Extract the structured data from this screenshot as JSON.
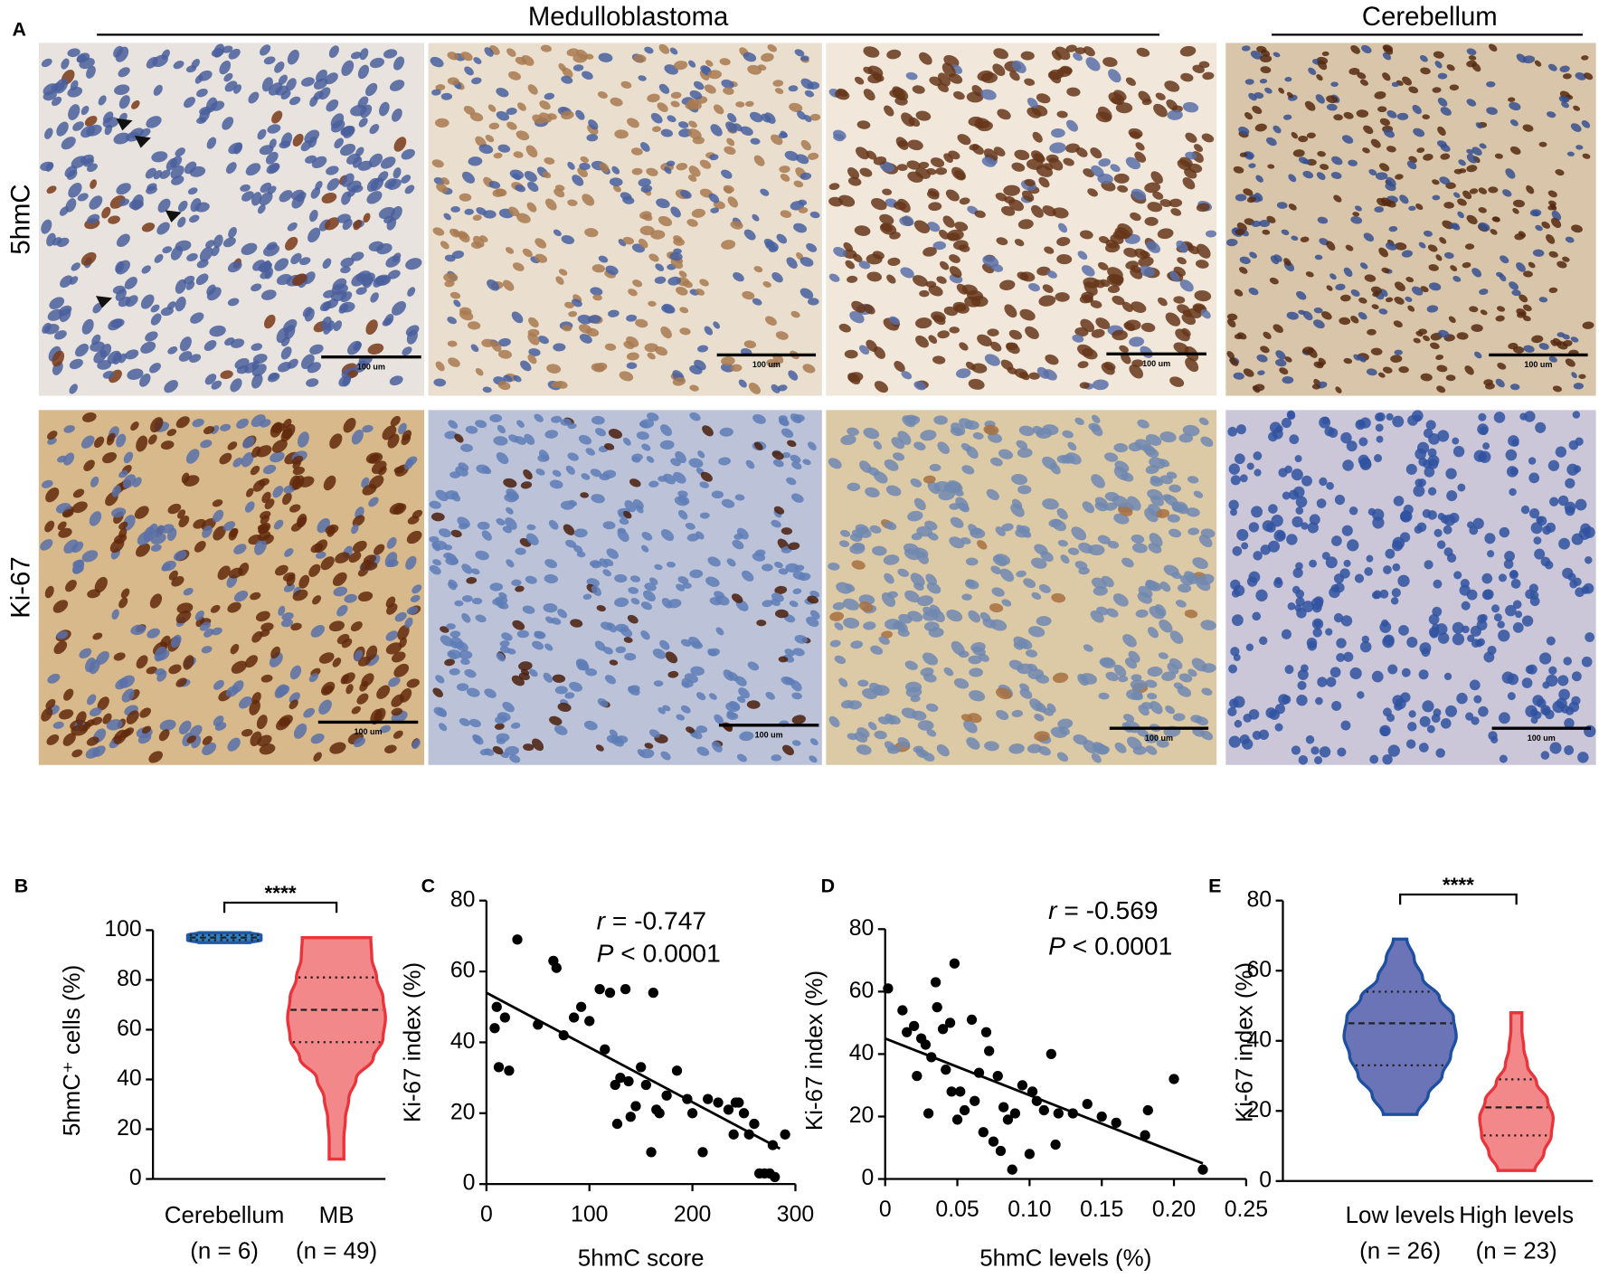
{
  "panel_a": {
    "label": "A",
    "groups": [
      "Medulloblastoma",
      "Cerebellum"
    ],
    "rows": [
      "5hmC",
      "Ki-67"
    ],
    "scale_bar": "100 um"
  },
  "chart_data": [
    {
      "type": "violin",
      "label": "B",
      "ylabel": "5hmC⁺ cells (%)",
      "categories": [
        "Cerebellum",
        "MB"
      ],
      "n_labels": [
        "(n = 6)",
        "(n = 49)"
      ],
      "ylim": [
        0,
        100
      ],
      "yticks": [
        0,
        20,
        40,
        60,
        80,
        100
      ],
      "significance": "****",
      "violins": [
        {
          "fill": "#2f7fc1",
          "stroke": "#1f5aa8",
          "min": 95,
          "max": 99,
          "q1": 96,
          "median": 97,
          "q3": 98,
          "density": [
            0.7,
            1,
            1,
            1,
            0.7
          ]
        },
        {
          "fill": "#f2888a",
          "stroke": "#e8343a",
          "min": 8,
          "max": 97,
          "q1": 55,
          "median": 68,
          "q3": 81,
          "density": [
            0.15,
            0.15,
            0.18,
            0.25,
            0.4,
            0.75,
            0.95,
            1,
            0.95,
            0.82,
            0.72,
            0.7
          ]
        }
      ]
    },
    {
      "type": "scatter",
      "label": "C",
      "xlabel": "5hmC score",
      "ylabel": "Ki-67 index (%)",
      "stat_r": {
        "symbol": "r",
        "text": "= -0.747"
      },
      "stat_p": {
        "symbol": "P",
        "text": "< 0.0001"
      },
      "xlim": [
        0,
        300
      ],
      "xticks": [
        0,
        100,
        200,
        300
      ],
      "ylim": [
        0,
        80
      ],
      "yticks": [
        0,
        20,
        40,
        60,
        80
      ],
      "x": [
        8,
        10,
        12,
        18,
        22,
        30,
        50,
        65,
        68,
        75,
        85,
        92,
        100,
        110,
        115,
        120,
        125,
        127,
        130,
        135,
        138,
        140,
        145,
        150,
        155,
        160,
        162,
        165,
        168,
        175,
        185,
        195,
        200,
        210,
        215,
        225,
        235,
        240,
        242,
        245,
        250,
        255,
        260,
        265,
        270,
        275,
        278,
        280,
        290
      ],
      "values": [
        44,
        50,
        33,
        47,
        32,
        69,
        45,
        63,
        61,
        42,
        47,
        50,
        46,
        55,
        38,
        54,
        28,
        17,
        30,
        55,
        29,
        19,
        22,
        33,
        28,
        9,
        54,
        21,
        20,
        25,
        32,
        24,
        20,
        9,
        24,
        23,
        21,
        14,
        23,
        23,
        20,
        14,
        17,
        3,
        3,
        3,
        11,
        2,
        14
      ],
      "fit": {
        "x": [
          0,
          285
        ],
        "values": [
          54,
          10
        ]
      }
    },
    {
      "type": "scatter",
      "label": "D",
      "xlabel": "5hmC levels (%)",
      "ylabel": "Ki-67 index (%)",
      "stat_r": {
        "symbol": "r",
        "text": "= -0.569"
      },
      "stat_p": {
        "symbol": "P",
        "text": "< 0.0001"
      },
      "xlim": [
        0,
        0.25
      ],
      "xticks": [
        0,
        0.05,
        {
          "value": 0.1,
          "label": "0.10"
        },
        0.15,
        {
          "value": 0.2,
          "label": "0.20"
        },
        0.25
      ],
      "ylim": [
        0,
        80
      ],
      "yticks": [
        0,
        20,
        40,
        60,
        80
      ],
      "x": [
        0.002,
        0.012,
        0.015,
        0.02,
        0.022,
        0.025,
        0.028,
        0.03,
        0.032,
        0.035,
        0.036,
        0.04,
        0.042,
        0.045,
        0.046,
        0.048,
        0.05,
        0.052,
        0.055,
        0.06,
        0.062,
        0.065,
        0.068,
        0.07,
        0.072,
        0.075,
        0.078,
        0.08,
        0.082,
        0.085,
        0.088,
        0.09,
        0.095,
        0.1,
        0.102,
        0.105,
        0.11,
        0.115,
        0.118,
        0.12,
        0.13,
        0.14,
        0.15,
        0.16,
        0.18,
        0.182,
        0.2,
        0.22
      ],
      "values": [
        61,
        54,
        47,
        49,
        33,
        45,
        43,
        21,
        39,
        63,
        55,
        48,
        35,
        50,
        28,
        69,
        19,
        28,
        22,
        51,
        25,
        34,
        15,
        47,
        41,
        12,
        33,
        9,
        23,
        19,
        3,
        21,
        30,
        8,
        28,
        25,
        22,
        40,
        11,
        21,
        21,
        24,
        20,
        18,
        14,
        22,
        32,
        3
      ],
      "fit": {
        "x": [
          0,
          0.22
        ],
        "values": [
          45,
          5
        ]
      }
    },
    {
      "type": "violin",
      "label": "E",
      "ylabel": "Ki-67 index (%)",
      "categories": [
        "Low levels",
        "High levels"
      ],
      "n_labels": [
        "(n = 26)",
        "(n = 23)"
      ],
      "ylim": [
        0,
        80
      ],
      "yticks": [
        0,
        20,
        40,
        60,
        80
      ],
      "significance": "****",
      "violins": [
        {
          "fill": "#6b74b6",
          "stroke": "#1e4fa0",
          "min": 19,
          "max": 69,
          "q1": 33,
          "median": 45,
          "q3": 54,
          "density": [
            0.3,
            0.5,
            0.75,
            0.9,
            1,
            0.95,
            0.7,
            0.4,
            0.25,
            0.12
          ]
        },
        {
          "fill": "#f2888a",
          "stroke": "#e8343a",
          "min": 3,
          "max": 48,
          "q1": 13,
          "median": 21,
          "q3": 29,
          "density": [
            0.5,
            0.75,
            0.95,
            1,
            0.85,
            0.55,
            0.3,
            0.2,
            0.15,
            0.15
          ]
        }
      ]
    }
  ]
}
